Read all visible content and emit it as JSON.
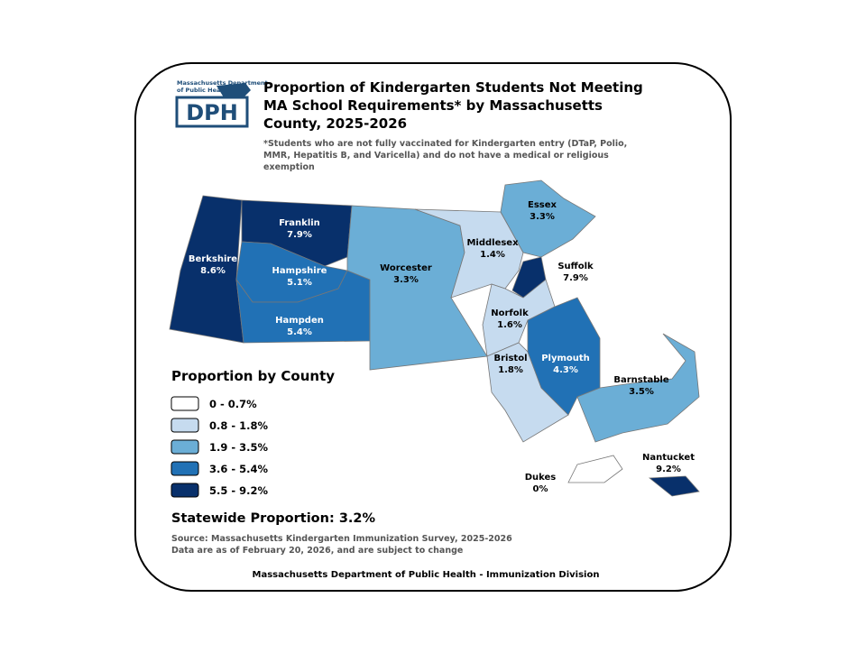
{
  "logo": {
    "line1": "Massachusetts Department",
    "line2": "of Public Health",
    "acronym": "DPH"
  },
  "title": "Proportion of Kindergarten Students Not Meeting MA School Requirements* by Massachusetts County, 2025-2026",
  "footnote": "*Students who are not fully vaccinated for Kindergarten entry (DTaP, Polio, MMR, Hepatitis B, and Varicella) and do not have a medical or religious exemption",
  "counties": [
    {
      "name": "Berkshire",
      "value": 8.6,
      "label": "8.6%"
    },
    {
      "name": "Franklin",
      "value": 7.9,
      "label": "7.9%"
    },
    {
      "name": "Hampshire",
      "value": 5.1,
      "label": "5.1%"
    },
    {
      "name": "Hampden",
      "value": 5.4,
      "label": "5.4%"
    },
    {
      "name": "Worcester",
      "value": 3.3,
      "label": "3.3%"
    },
    {
      "name": "Middlesex",
      "value": 1.4,
      "label": "1.4%"
    },
    {
      "name": "Essex",
      "value": 3.3,
      "label": "3.3%"
    },
    {
      "name": "Suffolk",
      "value": 7.9,
      "label": "7.9%"
    },
    {
      "name": "Norfolk",
      "value": 1.6,
      "label": "1.6%"
    },
    {
      "name": "Bristol",
      "value": 1.8,
      "label": "1.8%"
    },
    {
      "name": "Plymouth",
      "value": 4.3,
      "label": "4.3%"
    },
    {
      "name": "Barnstable",
      "value": 3.5,
      "label": "3.5%"
    },
    {
      "name": "Dukes",
      "value": 0,
      "label": "0%"
    },
    {
      "name": "Nantucket",
      "value": 9.2,
      "label": "9.2%"
    }
  ],
  "legend": {
    "title": "Proportion by County",
    "classes": [
      {
        "min": 0,
        "max": 0.7,
        "label": "0 - 0.7%",
        "color": "#ffffff"
      },
      {
        "min": 0.8,
        "max": 1.8,
        "label": "0.8 - 1.8%",
        "color": "#c6dbef"
      },
      {
        "min": 1.9,
        "max": 3.5,
        "label": "1.9 - 3.5%",
        "color": "#6baed6"
      },
      {
        "min": 3.6,
        "max": 5.4,
        "label": "3.6 - 5.4%",
        "color": "#2171b5"
      },
      {
        "min": 5.5,
        "max": 9.2,
        "label": "5.5 - 9.2%",
        "color": "#08306b"
      }
    ]
  },
  "statewide": "Statewide Proportion: 3.2%",
  "source": "Source: Massachusetts Kindergarten Immunization Survey, 2025-2026",
  "note": "Data are as of February 20, 2026, and are subject to change",
  "footer": "Massachusetts Department of Public Health - Immunization Division"
}
